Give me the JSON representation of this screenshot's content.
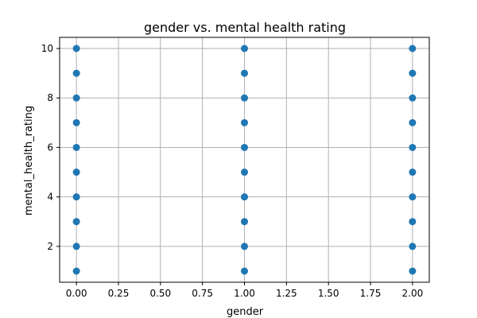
{
  "chart_data": {
    "type": "scatter",
    "title": "gender vs. mental health rating",
    "xlabel": "gender",
    "ylabel": "mental_health_rating",
    "xlim": [
      -0.1,
      2.1
    ],
    "ylim": [
      0.55,
      10.45
    ],
    "x_ticks": [
      "0.00",
      "0.25",
      "0.50",
      "0.75",
      "1.00",
      "1.25",
      "1.50",
      "1.75",
      "2.00"
    ],
    "y_ticks": [
      "2",
      "4",
      "6",
      "8",
      "10"
    ],
    "grid": true,
    "marker_color": "#1f77b4",
    "points": [
      {
        "x": 0,
        "y": 1
      },
      {
        "x": 0,
        "y": 2
      },
      {
        "x": 0,
        "y": 3
      },
      {
        "x": 0,
        "y": 4
      },
      {
        "x": 0,
        "y": 5
      },
      {
        "x": 0,
        "y": 6
      },
      {
        "x": 0,
        "y": 7
      },
      {
        "x": 0,
        "y": 8
      },
      {
        "x": 0,
        "y": 9
      },
      {
        "x": 0,
        "y": 10
      },
      {
        "x": 1,
        "y": 1
      },
      {
        "x": 1,
        "y": 2
      },
      {
        "x": 1,
        "y": 3
      },
      {
        "x": 1,
        "y": 4
      },
      {
        "x": 1,
        "y": 5
      },
      {
        "x": 1,
        "y": 6
      },
      {
        "x": 1,
        "y": 7
      },
      {
        "x": 1,
        "y": 8
      },
      {
        "x": 1,
        "y": 9
      },
      {
        "x": 1,
        "y": 10
      },
      {
        "x": 2,
        "y": 1
      },
      {
        "x": 2,
        "y": 2
      },
      {
        "x": 2,
        "y": 3
      },
      {
        "x": 2,
        "y": 4
      },
      {
        "x": 2,
        "y": 5
      },
      {
        "x": 2,
        "y": 6
      },
      {
        "x": 2,
        "y": 7
      },
      {
        "x": 2,
        "y": 8
      },
      {
        "x": 2,
        "y": 9
      },
      {
        "x": 2,
        "y": 10
      }
    ]
  }
}
